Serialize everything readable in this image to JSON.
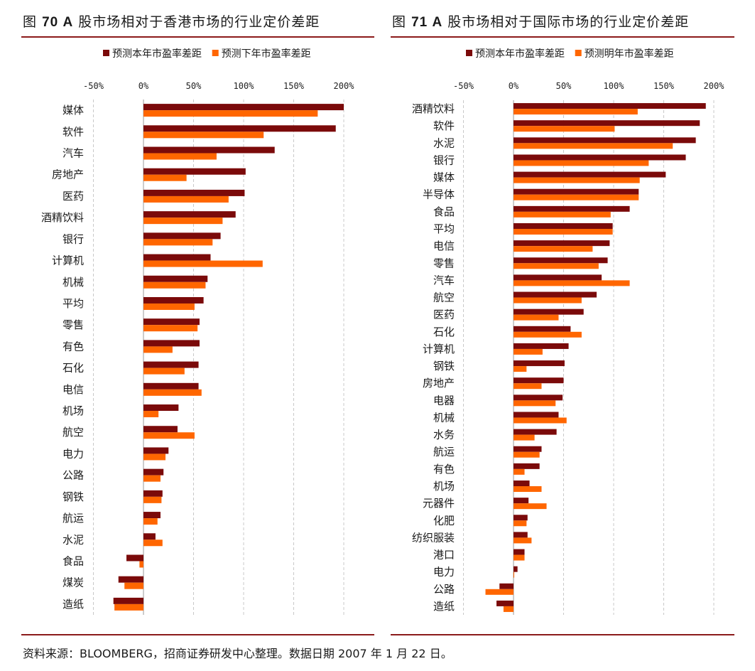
{
  "colors": {
    "series_this_year": "#7b0a0a",
    "series_next": "#ff6600",
    "rule": "#8b1a1a"
  },
  "titles": {
    "left_prefix": "图",
    "left_num": "70 A",
    "left_rest": "股市场相对于香港市场的行业定价差距",
    "right_prefix": "图",
    "right_num": "71 A",
    "right_rest": "股市场相对于国际市场的行业定价差距"
  },
  "source": "资料来源：BLOOMBERG，招商证券研发中心整理。数据日期 2007 年 1 月 22 日。",
  "chart_data": [
    {
      "type": "bar",
      "orientation": "horizontal",
      "title": "图70 A股市场相对于香港市场的行业定价差距",
      "xlim": [
        -50,
        200
      ],
      "ticks": [
        "-50%",
        "0%",
        "50%",
        "100%",
        "150%",
        "200%"
      ],
      "tick_values": [
        -50,
        0,
        50,
        100,
        150,
        200
      ],
      "grid": true,
      "legend_position": "top",
      "categories": [
        "媒体",
        "软件",
        "汽车",
        "房地产",
        "医药",
        "酒精饮料",
        "银行",
        "计算机",
        "机械",
        "平均",
        "零售",
        "有色",
        "石化",
        "电信",
        "机场",
        "航空",
        "电力",
        "公路",
        "钢铁",
        "航运",
        "水泥",
        "食品",
        "煤炭",
        "造纸"
      ],
      "series": [
        {
          "name": "预测本年市盈率差距",
          "values": [
            200,
            192,
            131,
            102,
            101,
            92,
            77,
            67,
            64,
            60,
            56,
            56,
            55,
            55,
            35,
            34,
            25,
            20,
            19,
            17,
            12,
            -17,
            -25,
            -30
          ]
        },
        {
          "name": "预测下年市盈率差距",
          "values": [
            174,
            120,
            73,
            43,
            85,
            79,
            69,
            119,
            62,
            51,
            54,
            29,
            41,
            58,
            15,
            51,
            22,
            17,
            18,
            14,
            19,
            -4,
            -19,
            -29
          ]
        }
      ]
    },
    {
      "type": "bar",
      "orientation": "horizontal",
      "title": "图71 A股市场相对于国际市场的行业定价差距",
      "xlim": [
        -50,
        200
      ],
      "ticks": [
        "-50%",
        "0%",
        "50%",
        "100%",
        "150%",
        "200%"
      ],
      "tick_values": [
        -50,
        0,
        50,
        100,
        150,
        200
      ],
      "grid": true,
      "legend_position": "top",
      "categories": [
        "酒精饮料",
        "软件",
        "水泥",
        "银行",
        "媒体",
        "半导体",
        "食品",
        "平均",
        "电信",
        "零售",
        "汽车",
        "航空",
        "医药",
        "石化",
        "计算机",
        "钢铁",
        "房地产",
        "电器",
        "机械",
        "水务",
        "航运",
        "有色",
        "机场",
        "元器件",
        "化肥",
        "纺织服装",
        "港口",
        "电力",
        "公路",
        "造纸"
      ],
      "series": [
        {
          "name": "预测本年市盈率差距",
          "values": [
            192,
            186,
            182,
            172,
            152,
            125,
            116,
            99,
            96,
            94,
            88,
            83,
            70,
            57,
            55,
            51,
            50,
            49,
            45,
            43,
            28,
            26,
            16,
            15,
            14,
            14,
            11,
            4,
            -14,
            -17
          ]
        },
        {
          "name": "预测明年市盈率差距",
          "values": [
            124,
            101,
            159,
            135,
            126,
            125,
            97,
            99,
            79,
            85,
            116,
            68,
            45,
            68,
            29,
            13,
            28,
            42,
            53,
            21,
            26,
            11,
            28,
            33,
            13,
            18,
            11,
            0,
            -28,
            -10
          ]
        }
      ]
    }
  ]
}
